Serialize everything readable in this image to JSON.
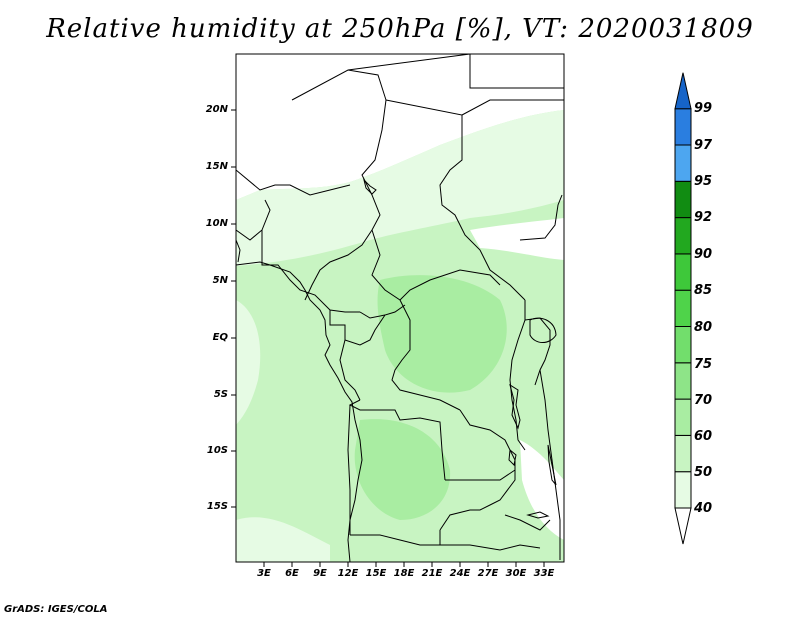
{
  "title": "Relative humidity at 250hPa [%], VT: 2020031809",
  "footer": "GrADS: IGES/COLA",
  "axes": {
    "lat_labels": [
      "20N",
      "15N",
      "10N",
      "5N",
      "EQ",
      "5S",
      "10S",
      "15S"
    ],
    "lat_values": [
      20,
      15,
      10,
      5,
      0,
      -5,
      -10,
      -15
    ],
    "lon_labels": [
      "3E",
      "6E",
      "9E",
      "12E",
      "15E",
      "18E",
      "21E",
      "24E",
      "27E",
      "30E",
      "33E"
    ],
    "lon_values": [
      3,
      6,
      9,
      12,
      15,
      18,
      21,
      24,
      27,
      30,
      33
    ]
  },
  "colorbar": {
    "labels": [
      "40",
      "50",
      "60",
      "70",
      "75",
      "80",
      "85",
      "90",
      "92",
      "95",
      "97",
      "99"
    ],
    "colors": [
      "#ffffff",
      "#e6fbe4",
      "#c8f4c2",
      "#a9eda2",
      "#8ee488",
      "#72de6c",
      "#4fd34a",
      "#3ec83a",
      "#22a81f",
      "#118c12",
      "#4da6f0",
      "#2a7ee0",
      "#1664c8"
    ]
  }
}
